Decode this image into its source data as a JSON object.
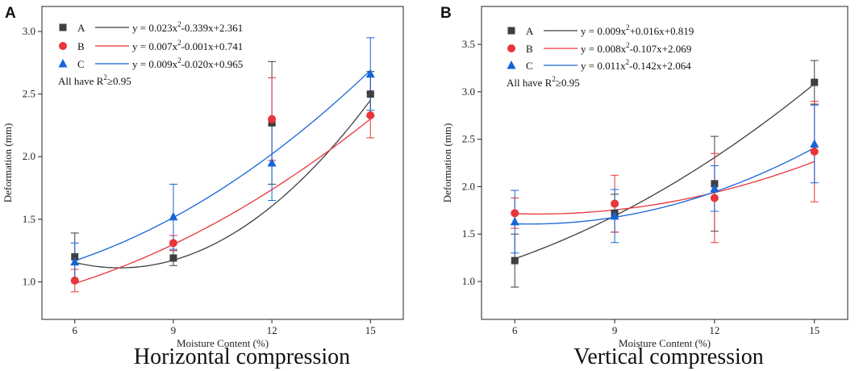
{
  "chart_data": [
    {
      "type": "scatter",
      "panel": "A",
      "caption": "Horizontal compression",
      "xlabel": "Moisture Content (%)",
      "ylabel": "Deformation (mm)",
      "xlim": [
        5,
        16
      ],
      "ylim": [
        0.7,
        3.2
      ],
      "xticks": [
        6,
        9,
        12,
        15
      ],
      "yticks": [
        1.0,
        1.5,
        2.0,
        2.5,
        3.0
      ],
      "ytick_labels": [
        "1.0",
        "1.5",
        "2.0",
        "2.5",
        "3.0"
      ],
      "note": {
        "prefix": "All have R",
        "sup": "2",
        "suffix": "≥0.95"
      },
      "series": [
        {
          "name": "A",
          "marker": "square",
          "color": "#3f3f3f",
          "x": [
            6,
            9,
            12,
            15
          ],
          "y": [
            1.2,
            1.19,
            2.27,
            2.5
          ],
          "err": [
            0.19,
            0.06,
            0.49,
            0.18
          ],
          "fit": {
            "a": 0.023,
            "b": -0.339,
            "c": 2.361
          },
          "eq_parts": [
            "y = 0.023x",
            "2",
            "-0.339x+2.361"
          ]
        },
        {
          "name": "B",
          "marker": "circle",
          "color": "#e8343b",
          "x": [
            6,
            9,
            12,
            15
          ],
          "y": [
            1.01,
            1.31,
            2.3,
            2.33
          ],
          "err": [
            0.09,
            0.06,
            0.33,
            0.18
          ],
          "fit": {
            "a": 0.007,
            "b": -0.001,
            "c": 0.741
          },
          "eq_parts": [
            "y = 0.007x",
            "2",
            "-0.001x+0.741"
          ]
        },
        {
          "name": "C",
          "marker": "triangle",
          "color": "#1565d8",
          "x": [
            6,
            9,
            12,
            15
          ],
          "y": [
            1.16,
            1.52,
            1.95,
            2.66
          ],
          "err": [
            0.15,
            0.26,
            0.3,
            0.29
          ],
          "fit": {
            "a": 0.009,
            "b": -0.02,
            "c": 0.965
          },
          "eq_parts": [
            "y = 0.009x",
            "2",
            "-0.020x+0.965"
          ]
        }
      ]
    },
    {
      "type": "scatter",
      "panel": "B",
      "caption": "Vertical compression",
      "xlabel": "Moisture Content (%)",
      "ylabel": "Deformation (mm)",
      "xlim": [
        5,
        16
      ],
      "ylim": [
        0.6,
        3.9
      ],
      "xticks": [
        6,
        9,
        12,
        15
      ],
      "yticks": [
        1.0,
        1.5,
        2.0,
        2.5,
        3.0,
        3.5
      ],
      "ytick_labels": [
        "1.0",
        "1.5",
        "2.0",
        "2.5",
        "3.0",
        "3.5"
      ],
      "note": {
        "prefix": "All have R",
        "sup": "2",
        "suffix": "≥0.95"
      },
      "series": [
        {
          "name": "A",
          "marker": "square",
          "color": "#3f3f3f",
          "x": [
            6,
            9,
            12,
            15
          ],
          "y": [
            1.22,
            1.72,
            2.03,
            3.1
          ],
          "err": [
            0.28,
            0.2,
            0.5,
            0.23
          ],
          "fit": {
            "a": 0.009,
            "b": 0.016,
            "c": 0.819
          },
          "eq_parts": [
            "y = 0.009x",
            "2",
            "+0.016x+0.819"
          ]
        },
        {
          "name": "B",
          "marker": "circle",
          "color": "#e8343b",
          "x": [
            6,
            9,
            12,
            15
          ],
          "y": [
            1.72,
            1.82,
            1.88,
            2.37
          ],
          "err": [
            0.16,
            0.3,
            0.47,
            0.53
          ],
          "fit": {
            "a": 0.008,
            "b": -0.107,
            "c": 2.069
          },
          "eq_parts": [
            "y = 0.008x",
            "2",
            "-0.107x+2.069"
          ]
        },
        {
          "name": "C",
          "marker": "triangle",
          "color": "#1565d8",
          "x": [
            6,
            9,
            12,
            15
          ],
          "y": [
            1.63,
            1.69,
            1.98,
            2.45
          ],
          "err": [
            0.33,
            0.28,
            0.24,
            0.41
          ],
          "fit": {
            "a": 0.011,
            "b": -0.142,
            "c": 2.064
          },
          "eq_parts": [
            "y = 0.011x",
            "2",
            "-0.142x+2.064"
          ]
        }
      ]
    }
  ]
}
